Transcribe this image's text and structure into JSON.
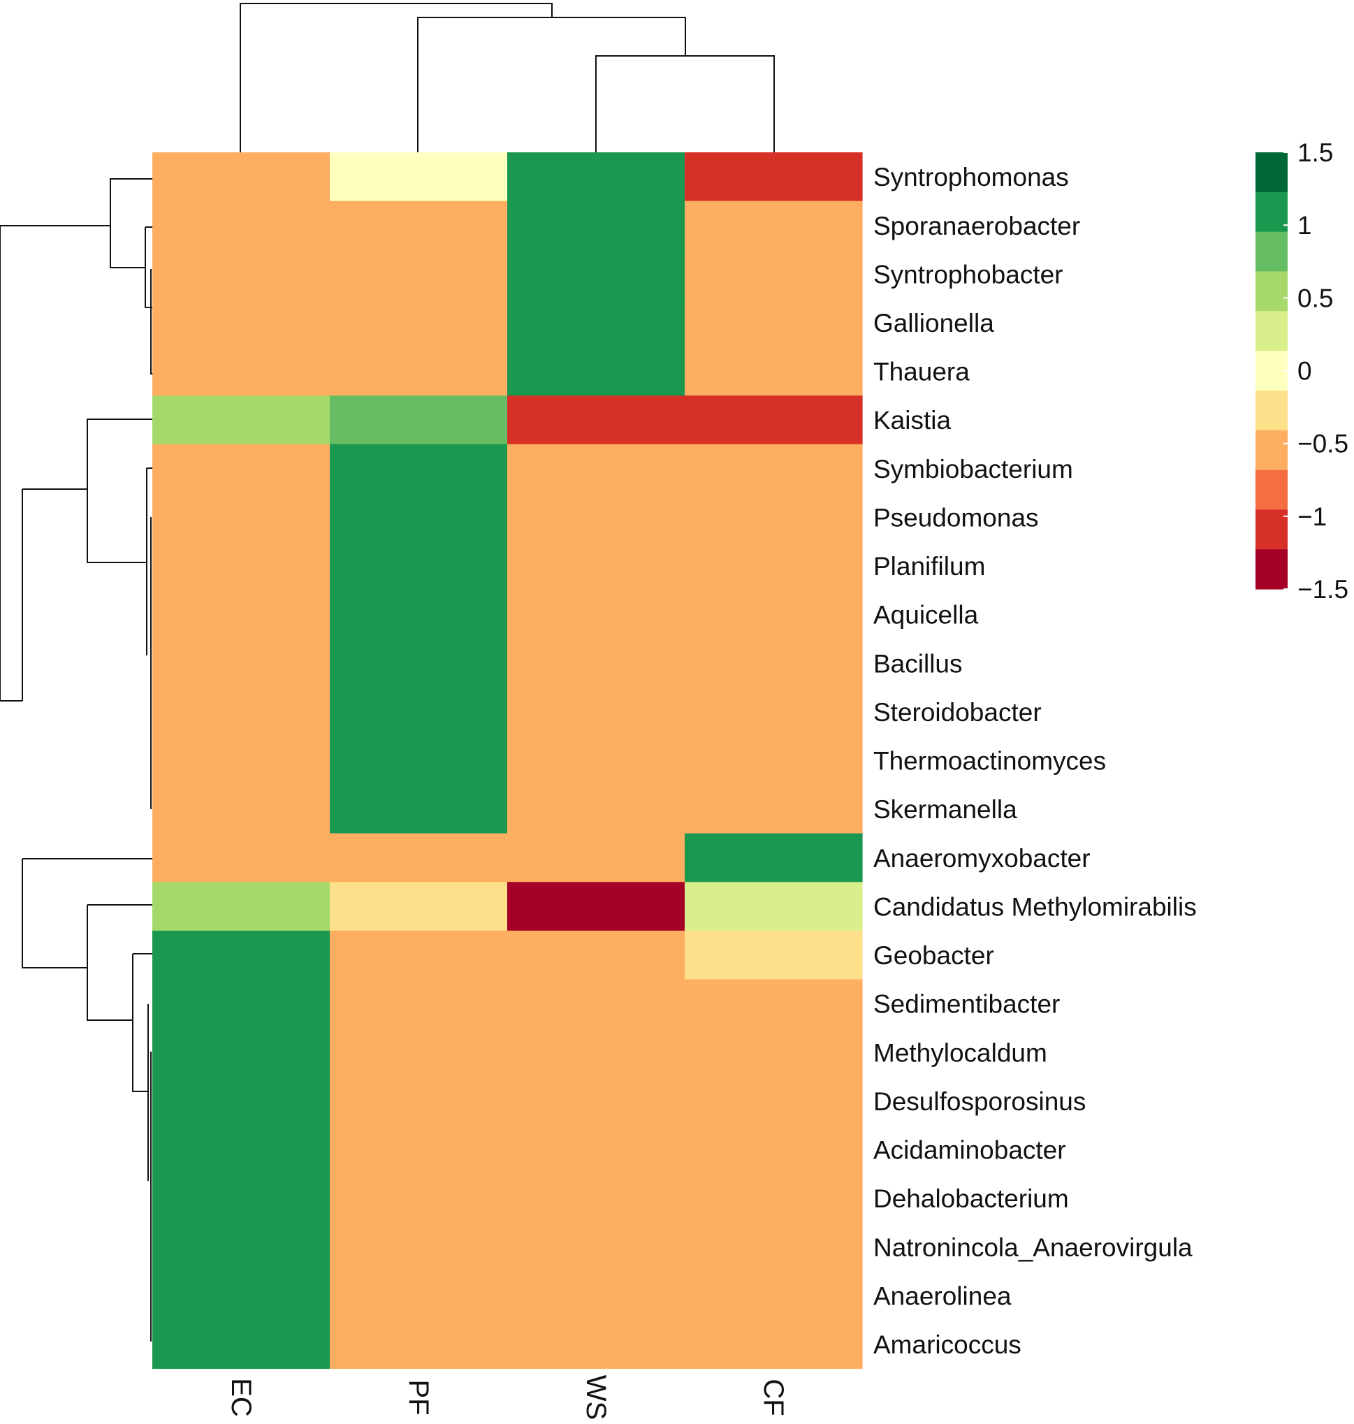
{
  "chart_data": {
    "type": "heatmap",
    "title": "",
    "xlabel": "",
    "ylabel": "",
    "columns": [
      "EC",
      "PF",
      "WS",
      "CF"
    ],
    "rows": [
      "Syntrophomonas",
      "Sporanaerobacter",
      "Syntrophobacter",
      "Gallionella",
      "Thauera",
      "Kaistia",
      "Symbiobacterium",
      "Pseudomonas",
      "Planifilum",
      "Aquicella",
      "Bacillus",
      "Steroidobacter",
      "Thermoactinomyces",
      "Skermanella",
      "Anaeromyxobacter",
      "Candidatus Methylomirabilis",
      "Geobacter",
      "Sedimentibacter",
      "Methylocaldum",
      "Desulfosporosinus",
      "Acidaminobacter",
      "Dehalobacterium",
      "Natronincola_Anaerovirgula",
      "Anaerolinea",
      "Amaricoccus"
    ],
    "values": [
      [
        -0.5,
        0.3,
        1.5,
        -0.9
      ],
      [
        -0.3,
        -0.5,
        1.5,
        -0.5
      ],
      [
        -0.5,
        -0.5,
        1.5,
        -0.5
      ],
      [
        -0.5,
        -0.5,
        1.5,
        -0.5
      ],
      [
        -0.5,
        -0.5,
        1.5,
        -0.5
      ],
      [
        0.8,
        1.2,
        -0.9,
        -0.9
      ],
      [
        -0.5,
        1.5,
        -0.5,
        -0.5
      ],
      [
        -0.5,
        1.5,
        -0.5,
        -0.5
      ],
      [
        -0.5,
        1.5,
        -0.5,
        -0.5
      ],
      [
        -0.5,
        1.5,
        -0.5,
        -0.5
      ],
      [
        -0.5,
        1.5,
        -0.5,
        -0.5
      ],
      [
        -0.5,
        1.5,
        -0.5,
        -0.5
      ],
      [
        -0.5,
        1.5,
        -0.5,
        -0.5
      ],
      [
        -0.5,
        1.5,
        -0.5,
        -0.5
      ],
      [
        -0.5,
        -0.3,
        -0.5,
        1.5
      ],
      [
        0.8,
        0.0,
        -1.5,
        0.6
      ],
      [
        1.5,
        -0.5,
        -0.5,
        0.0
      ],
      [
        1.5,
        -0.5,
        -0.5,
        -0.5
      ],
      [
        1.5,
        -0.5,
        -0.5,
        -0.5
      ],
      [
        1.5,
        -0.5,
        -0.5,
        -0.5
      ],
      [
        1.5,
        -0.5,
        -0.5,
        -0.5
      ],
      [
        1.5,
        -0.5,
        -0.5,
        -0.5
      ],
      [
        1.5,
        -0.5,
        -0.5,
        -0.5
      ],
      [
        1.5,
        -0.5,
        -0.5,
        -0.5
      ],
      [
        1.5,
        -0.5,
        -0.5,
        -0.5
      ]
    ],
    "color_scale": {
      "min": -1.5,
      "max": 1.5,
      "bin_edges": [
        -1.5,
        -1.2,
        -0.9,
        -0.6,
        -0.3,
        0.0,
        0.3,
        0.6,
        0.9,
        1.2,
        1.5
      ],
      "bin_colors": [
        "#A50026",
        "#D73027",
        "#F46D43",
        "#FDAE61",
        "#FEE08B",
        "#FFFFBF",
        "#D9EF8B",
        "#A6D96A",
        "#66BD63",
        "#1A9850",
        "#006837"
      ]
    },
    "legend": {
      "position": "right",
      "tick_labels": [
        "1.5",
        "1",
        "0.5",
        "0",
        "−0.5",
        "−1",
        "−1.5"
      ],
      "tick_values": [
        1.5,
        1,
        0.5,
        0,
        -0.5,
        -1,
        -1.5
      ]
    },
    "column_dendrogram": {
      "shown": true,
      "merges": [
        {
          "left": "WS",
          "right": "CF",
          "height": 0.35
        },
        {
          "left": "PF",
          "right": [
            "WS",
            "CF"
          ],
          "height": 0.65
        },
        {
          "left": "EC",
          "right": [
            "PF",
            "WS",
            "CF"
          ],
          "height": 1.0
        }
      ]
    },
    "row_dendrogram": {
      "shown": true,
      "side": "left"
    }
  }
}
